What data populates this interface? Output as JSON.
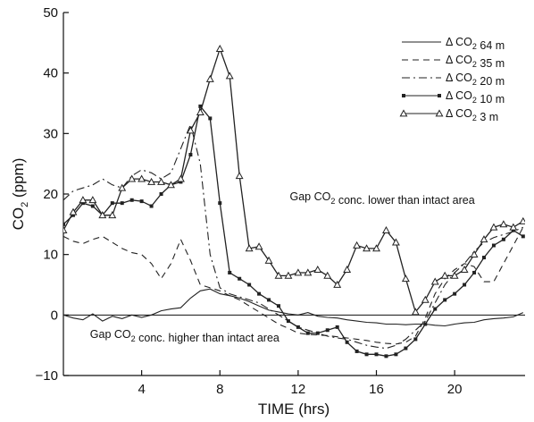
{
  "chart_data": {
    "type": "line",
    "xlabel": "TIME (hrs)",
    "ylabel": "CO2 (ppm)",
    "xlim": [
      0,
      23.6
    ],
    "ylim": [
      -10,
      50
    ],
    "x_ticks": [
      4,
      8,
      12,
      16,
      20
    ],
    "y_ticks": [
      -10,
      0,
      10,
      20,
      30,
      40,
      50
    ],
    "grid": false,
    "legend_position": "top-right",
    "reference_line_y": 0,
    "annotations": [
      {
        "text": "Gap CO2 conc. lower than intact area",
        "x": 16.3,
        "y": 19
      },
      {
        "text": "Gap CO2 conc. higher than intact area",
        "x": 6.2,
        "y": -3.8
      }
    ],
    "series": [
      {
        "name": "Δ CO2 64 m",
        "style": "solid",
        "marker": "none",
        "x": [
          0,
          0.5,
          1,
          1.5,
          2,
          2.5,
          3,
          3.5,
          4,
          4.5,
          5,
          5.5,
          6,
          6.5,
          7,
          7.5,
          8,
          8.5,
          9,
          9.5,
          10,
          10.5,
          11,
          11.5,
          12,
          12.5,
          13,
          13.5,
          14,
          14.5,
          15,
          15.5,
          16,
          16.5,
          17,
          17.5,
          18,
          18.5,
          19,
          19.5,
          20,
          20.5,
          21,
          21.5,
          22,
          22.5,
          23,
          23.5
        ],
        "y": [
          0,
          -0.5,
          -0.8,
          0.2,
          -1,
          -0.2,
          -0.6,
          0,
          -0.4,
          0,
          0.7,
          1,
          1.2,
          2.8,
          4,
          4.3,
          3.5,
          3.2,
          2.8,
          2.2,
          1.5,
          0.8,
          0.5,
          0.2,
          0,
          0.4,
          -0.2,
          -0.4,
          -0.5,
          -0.8,
          -1,
          -1.2,
          -1.3,
          -1.5,
          -1.5,
          -1.6,
          -1.5,
          -1.5,
          -1.7,
          -1.8,
          -1.5,
          -1.3,
          -1.2,
          -0.8,
          -0.6,
          -0.5,
          -0.3,
          0.4
        ]
      },
      {
        "name": "Δ CO2 35 m",
        "style": "dashed",
        "marker": "none",
        "x": [
          0,
          0.5,
          1,
          1.5,
          2,
          2.5,
          3,
          3.5,
          4,
          4.5,
          5,
          5.5,
          6,
          6.5,
          7,
          7.5,
          8,
          8.5,
          9,
          9.5,
          10,
          10.5,
          11,
          11.5,
          12,
          12.5,
          13,
          13.5,
          14,
          14.5,
          15,
          15.5,
          16,
          16.5,
          17,
          17.5,
          18,
          18.5,
          19,
          19.5,
          20,
          20.5,
          21,
          21.5,
          22,
          22.5,
          23,
          23.5
        ],
        "y": [
          13,
          12.2,
          11.8,
          12.5,
          13,
          12,
          11,
          10.3,
          10,
          8.5,
          6,
          8.5,
          12.5,
          9,
          5,
          4.5,
          4,
          3.2,
          2.5,
          1.5,
          0.5,
          -0.5,
          -1.5,
          -2.2,
          -3,
          -3.2,
          -3.3,
          -3.4,
          -3.6,
          -3.8,
          -4,
          -4.2,
          -4.5,
          -4.7,
          -4.8,
          -4.5,
          -3.5,
          -0.5,
          3.5,
          6,
          7.5,
          8.5,
          8,
          5.5,
          5.5,
          8.5,
          11.5,
          14.5
        ]
      },
      {
        "name": "Δ CO2 20 m",
        "style": "dashdot",
        "marker": "none",
        "x": [
          0,
          0.5,
          1,
          1.5,
          2,
          2.5,
          3,
          3.5,
          4,
          4.5,
          5,
          5.5,
          6,
          6.5,
          7,
          7.5,
          8,
          8.5,
          9,
          9.5,
          10,
          10.5,
          11,
          11.5,
          12,
          12.5,
          13,
          13.5,
          14,
          14.5,
          15,
          15.5,
          16,
          16.5,
          17,
          17.5,
          18,
          18.5,
          19,
          19.5,
          20,
          20.5,
          21,
          21.5,
          22,
          22.5,
          23,
          23.5
        ],
        "y": [
          19,
          20.5,
          21,
          21.5,
          22.5,
          21.5,
          21,
          23,
          24,
          23.5,
          22.5,
          23.5,
          27.5,
          31.5,
          25,
          10,
          4.5,
          3.5,
          3,
          2.5,
          2,
          1,
          0,
          -1,
          -2,
          -2.5,
          -3,
          -3.5,
          -3.8,
          -4,
          -4.5,
          -5,
          -5.3,
          -5.5,
          -5,
          -4,
          -2.5,
          -1,
          2,
          5,
          7,
          8.5,
          10.5,
          12,
          12.8,
          13.3,
          13.8,
          14.5
        ]
      },
      {
        "name": "Δ CO2 10 m",
        "style": "solid",
        "marker": "square",
        "x": [
          0,
          0.5,
          1,
          1.5,
          2,
          2.5,
          3,
          3.5,
          4,
          4.5,
          5,
          5.5,
          6,
          6.5,
          7,
          7.5,
          8,
          8.5,
          9,
          9.5,
          10,
          10.5,
          11,
          11.5,
          12,
          12.5,
          13,
          13.5,
          14,
          14.5,
          15,
          15.5,
          16,
          16.5,
          17,
          17.5,
          18,
          18.5,
          19,
          19.5,
          20,
          20.5,
          21,
          21.5,
          22,
          22.5,
          23,
          23.5
        ],
        "y": [
          15,
          16.5,
          18.5,
          18,
          16.5,
          18.5,
          18.5,
          19,
          18.8,
          18,
          20,
          21.5,
          22,
          26.5,
          34.5,
          32.5,
          18.5,
          7,
          6,
          5,
          3.5,
          2.5,
          1.5,
          -1,
          -2,
          -3,
          -3,
          -2.5,
          -2,
          -4.5,
          -6,
          -6.5,
          -6.5,
          -6.8,
          -6.5,
          -5.5,
          -4,
          -1.5,
          1,
          2.5,
          3.5,
          5,
          7,
          9.5,
          11.5,
          12.5,
          14,
          13
        ]
      },
      {
        "name": "Δ CO2 3 m",
        "style": "solid",
        "marker": "triangle",
        "x": [
          0,
          0.5,
          1,
          1.5,
          2,
          2.5,
          3,
          3.5,
          4,
          4.5,
          5,
          5.5,
          6,
          6.5,
          7,
          7.5,
          8,
          8.5,
          9,
          9.5,
          10,
          10.5,
          11,
          11.5,
          12,
          12.5,
          13,
          13.5,
          14,
          14.5,
          15,
          15.5,
          16,
          16.5,
          17,
          17.5,
          18,
          18.5,
          19,
          19.5,
          20,
          20.5,
          21,
          21.5,
          22,
          22.5,
          23,
          23.5
        ],
        "y": [
          14,
          17,
          19,
          19,
          16.5,
          16.5,
          21,
          22.5,
          22.5,
          22,
          22,
          21.5,
          22.5,
          30.5,
          33.5,
          39,
          44,
          39.5,
          23,
          11,
          11.3,
          9,
          6.5,
          6.5,
          7,
          7,
          7.5,
          6.5,
          5,
          7.5,
          11.5,
          11,
          11,
          14,
          12,
          6,
          0.5,
          2.5,
          5.5,
          6.5,
          6.5,
          7.5,
          10,
          12.5,
          14.5,
          15,
          14.5,
          15.5
        ]
      }
    ]
  }
}
